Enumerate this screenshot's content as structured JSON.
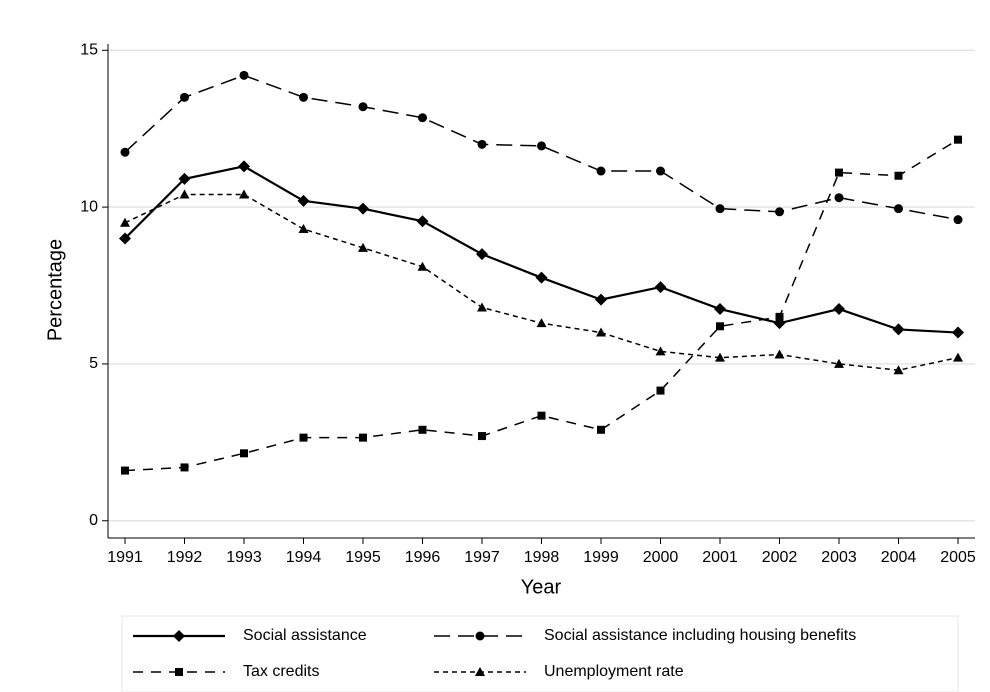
{
  "chart_data": {
    "type": "line",
    "x_label": "Year",
    "y_label": "Percentage",
    "categories": [
      "1991",
      "1992",
      "1993",
      "1994",
      "1995",
      "1996",
      "1997",
      "1998",
      "1999",
      "2000",
      "2001",
      "2002",
      "2003",
      "2004",
      "2005"
    ],
    "ylim": [
      -0.55,
      15.2
    ],
    "yticks": [
      0,
      5,
      10,
      15
    ],
    "grid": true,
    "series": [
      {
        "name": "Social assistance",
        "color": "#000000",
        "dash": "solid",
        "marker": "diamond",
        "values": [
          9.0,
          10.9,
          11.3,
          10.2,
          9.95,
          9.55,
          8.5,
          7.75,
          7.05,
          7.45,
          6.75,
          6.3,
          6.75,
          6.1,
          6.0
        ]
      },
      {
        "name": "Social assistance including housing benefits",
        "color": "#000000",
        "dash": "longdash",
        "marker": "circle",
        "values": [
          11.75,
          13.5,
          14.2,
          13.5,
          13.2,
          12.85,
          12.0,
          11.95,
          11.15,
          11.15,
          9.95,
          9.85,
          10.3,
          9.95,
          9.6
        ]
      },
      {
        "name": "Tax credits",
        "color": "#000000",
        "dash": "dash",
        "marker": "square",
        "values": [
          1.6,
          1.7,
          2.15,
          2.65,
          2.65,
          2.9,
          2.7,
          3.35,
          2.9,
          4.15,
          6.2,
          6.5,
          11.1,
          11.0,
          12.15
        ]
      },
      {
        "name": "Unemployment rate",
        "color": "#000000",
        "dash": "shortdash",
        "marker": "triangle",
        "values": [
          9.5,
          10.4,
          10.4,
          9.3,
          8.7,
          8.1,
          6.8,
          6.3,
          6.0,
          5.4,
          5.2,
          5.3,
          5.0,
          4.8,
          5.2
        ]
      }
    ]
  }
}
